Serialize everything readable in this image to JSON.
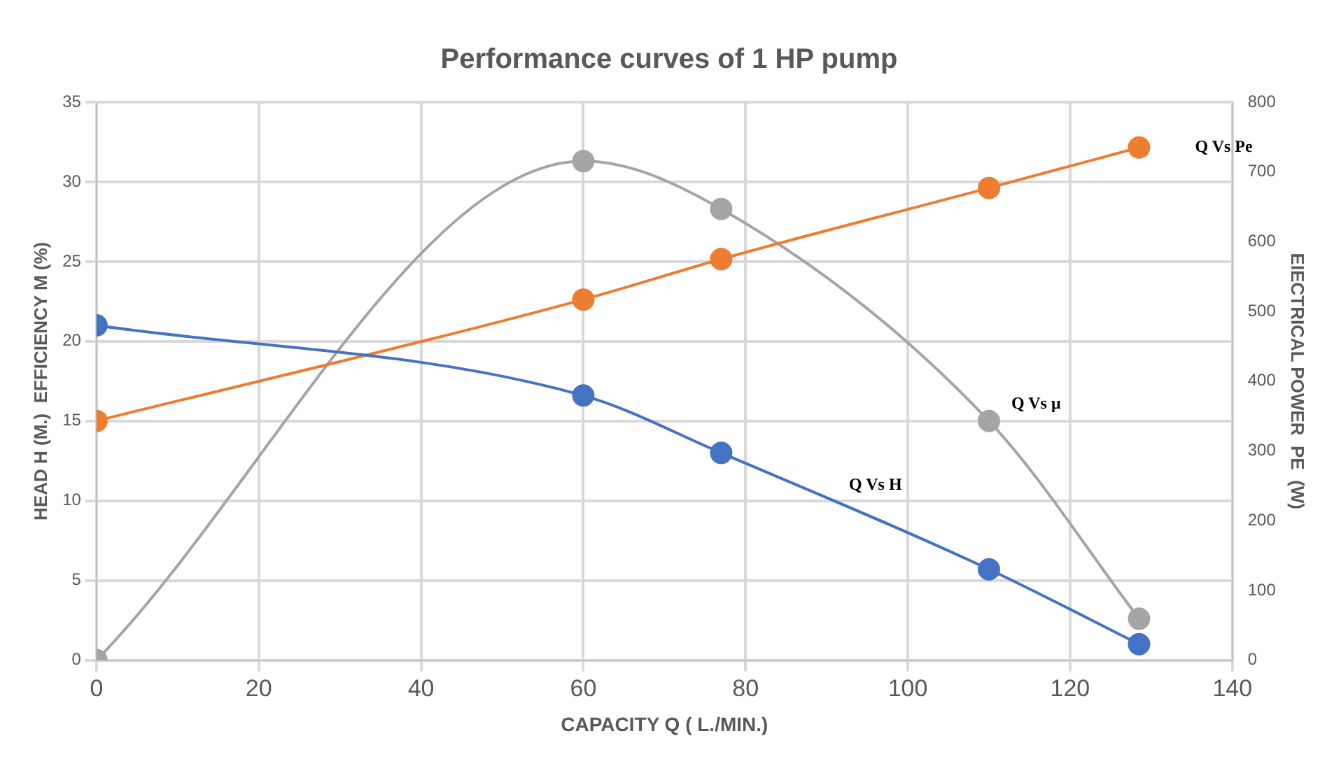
{
  "chart_data": {
    "type": "line",
    "title": "Performance curves of 1 HP pump",
    "xlabel": "CAPACITY Q ( L./MIN.)",
    "ylabel": "HEAD H (M.)  EFFICIENCY M (%)",
    "y2label": "EIECTRICAL POWER  PE  (W)",
    "x": [
      0,
      60,
      77,
      110,
      128.5
    ],
    "series": [
      {
        "name": "Q Vs H",
        "color": "#4472c4",
        "values": [
          21,
          16.6,
          13,
          5.7,
          1
        ]
      },
      {
        "name": "Q Vs Pe",
        "color": "#ed7d31",
        "axis": "y2",
        "values": [
          343,
          517,
          575,
          677,
          735
        ]
      },
      {
        "name": "Q Vs μ",
        "color": "#a5a5a5",
        "values": [
          0,
          31.3,
          28.3,
          15,
          2.6
        ]
      }
    ],
    "xlim": [
      0,
      140
    ],
    "xticks": [
      0,
      20,
      40,
      60,
      80,
      100,
      120,
      140
    ],
    "ylim": [
      0,
      35
    ],
    "yticks": [
      0,
      5,
      10,
      15,
      20,
      25,
      30,
      35
    ],
    "y2lim": [
      0,
      800
    ],
    "y2ticks": [
      0,
      100,
      200,
      300,
      400,
      500,
      600,
      700,
      800
    ],
    "grid": true,
    "legend": false,
    "marker": "circle",
    "line_style": "solid"
  }
}
